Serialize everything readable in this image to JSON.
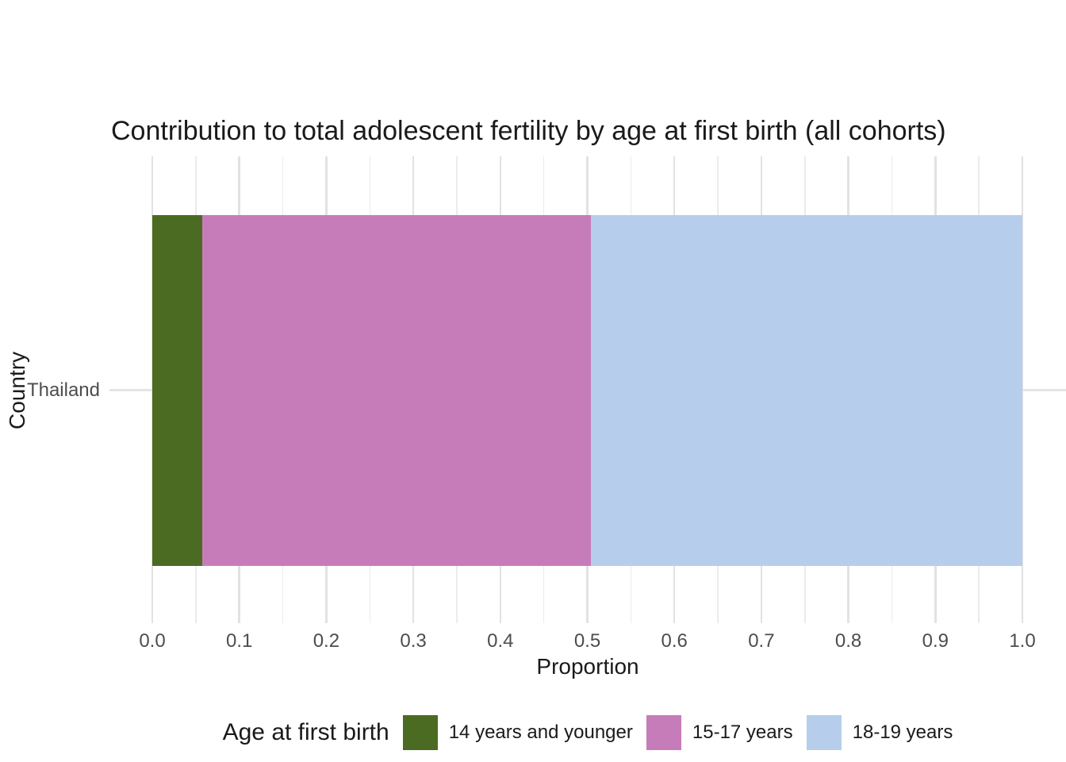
{
  "title": "Contribution to total adolescent fertility by age at first birth (all cohorts)",
  "chart_data": {
    "type": "bar",
    "orientation": "horizontal",
    "stacked": true,
    "title": "Contribution to total adolescent fertility by age at first birth (all cohorts)",
    "xlabel": "Proportion",
    "ylabel": "Country",
    "categories": [
      "Thailand"
    ],
    "series": [
      {
        "name": "14 years and younger",
        "color": "#4C6B22",
        "values": [
          0.057
        ]
      },
      {
        "name": "15-17 years",
        "color": "#C77CBA",
        "values": [
          0.447
        ]
      },
      {
        "name": "18-19 years",
        "color": "#B6CEEC",
        "values": [
          0.496
        ]
      }
    ],
    "xlim": [
      0.0,
      1.0
    ],
    "x_tick_values": [
      0.0,
      0.1,
      0.2,
      0.3,
      0.4,
      0.5,
      0.6,
      0.7,
      0.8,
      0.9,
      1.0
    ],
    "x_tick_labels": [
      "0.0",
      "0.1",
      "0.2",
      "0.3",
      "0.4",
      "0.5",
      "0.6",
      "0.7",
      "0.8",
      "0.9",
      "1.0"
    ],
    "x_minor_tick_values": [
      0.05,
      0.15,
      0.25,
      0.35,
      0.45,
      0.55,
      0.65,
      0.75,
      0.85,
      0.95
    ],
    "grid": "on",
    "legend": {
      "title": "Age at first birth",
      "position": "bottom",
      "entries": [
        "14 years and younger",
        "15-17 years",
        "18-19 years"
      ]
    }
  },
  "colors": {
    "background": "#FFFFFF",
    "grid_major": "#E2E2E2",
    "grid_minor": "#EBEBEB",
    "grid_horizontal": "#E4E4E4",
    "axis_text": "#4D4D4D",
    "title_text": "#1A1A1A"
  }
}
